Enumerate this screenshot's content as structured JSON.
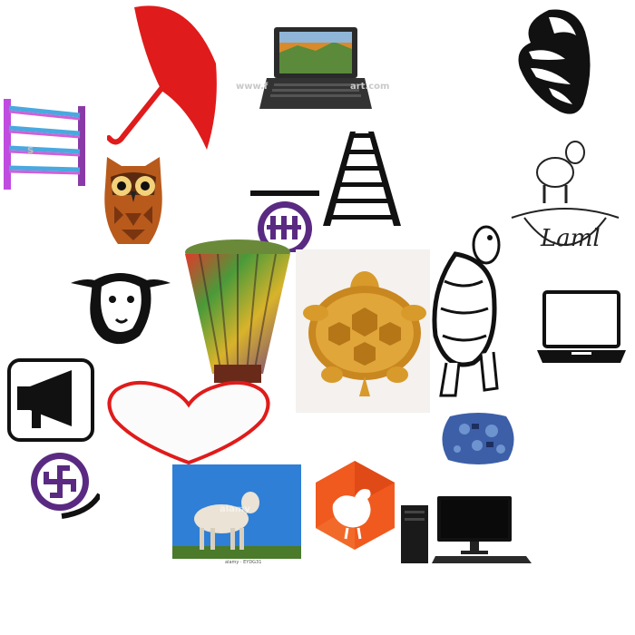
{
  "collage": {
    "background": "#ffffff",
    "items": [
      {
        "name": "ladder-rack-icon",
        "color": "#c04be0"
      },
      {
        "name": "umbrella-icon",
        "color": "#e01b1b"
      },
      {
        "name": "laptop-photo"
      },
      {
        "name": "conch-shell-icon",
        "color": "#111111"
      },
      {
        "name": "owl-icon",
        "color": "#b85a1c"
      },
      {
        "name": "ladder-icon",
        "color": "#111111"
      },
      {
        "name": "lamb-logo-icon",
        "color": "#222222"
      },
      {
        "name": "purple-emblem-icon",
        "color": "#5a2a82"
      },
      {
        "name": "sheep-head-icon",
        "color": "#111111"
      },
      {
        "name": "woven-basket-photo"
      },
      {
        "name": "golden-turtle-photo",
        "color": "#d89a2a"
      },
      {
        "name": "turtle-outline-icon",
        "color": "#111111"
      },
      {
        "name": "laptop-outline-icon",
        "color": "#111111"
      },
      {
        "name": "megaphone-icon",
        "color": "#111111"
      },
      {
        "name": "heart-icon",
        "color": "#e01b1b"
      },
      {
        "name": "patterned-cushion-photo",
        "color": "#3d5fa8"
      },
      {
        "name": "swastika-icon",
        "color": "#5a2a82"
      },
      {
        "name": "lamb-photo",
        "color": "#2f7fd6"
      },
      {
        "name": "chicken-hexagon-icon",
        "color": "#f05a1e"
      },
      {
        "name": "desktop-computer-photo",
        "color": "#111111"
      }
    ]
  },
  "text": {
    "laptop_watermark": "www.f",
    "laptop_watermark_tail": "art.com",
    "lamb_logo_text": "Laml",
    "lamb_photo_watermark": "alamy",
    "lamb_photo_caption": "alamy · EYDG31",
    "ladder_watermark": "S"
  }
}
